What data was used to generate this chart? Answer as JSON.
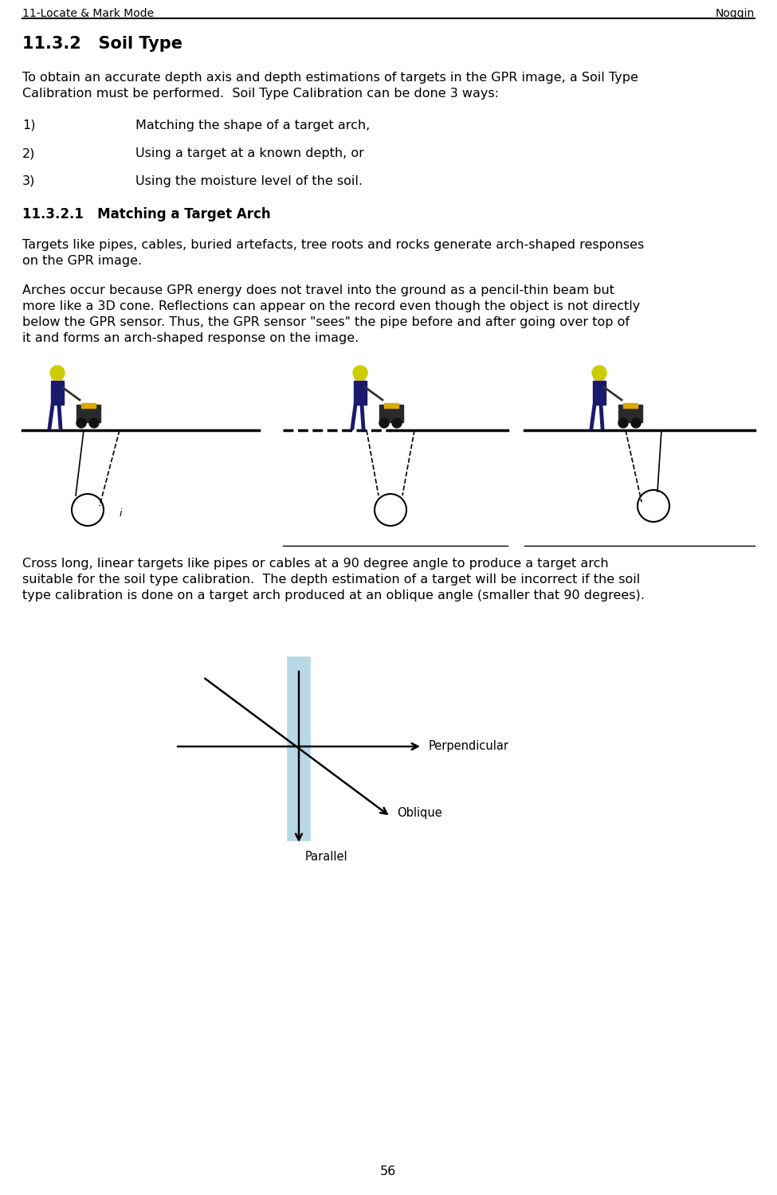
{
  "header_left": "11-Locate & Mark Mode",
  "header_right": "Noggin",
  "section_title": "11.3.2   Soil Type",
  "para1_line1": "To obtain an accurate depth axis and depth estimations of targets in the GPR image, a Soil Type",
  "para1_line2": "Calibration must be performed.  Soil Type Calibration can be done 3 ways:",
  "list_items": [
    {
      "num": "1)",
      "text": "Matching the shape of a target arch,"
    },
    {
      "num": "2)",
      "text": "Using a target at a known depth, or"
    },
    {
      "num": "3)",
      "text": "Using the moisture level of the soil."
    }
  ],
  "subsection_title": "11.3.2.1   Matching a Target Arch",
  "para2_line1": "Targets like pipes, cables, buried artefacts, tree roots and rocks generate arch-shaped responses",
  "para2_line2": "on the GPR image.",
  "para3_line1": "Arches occur because GPR energy does not travel into the ground as a pencil-thin beam but",
  "para3_line2": "more like a 3D cone. Reflections can appear on the record even though the object is not directly",
  "para3_line3": "below the GPR sensor. Thus, the GPR sensor \"sees\" the pipe before and after going over top of",
  "para3_line4": "it and forms an arch-shaped response on the image.",
  "para4_line1": "Cross long, linear targets like pipes or cables at a 90 degree angle to produce a target arch",
  "para4_line2": "suitable for the soil type calibration.  The depth estimation of a target will be incorrect if the soil",
  "para4_line3": "type calibration is done on a target arch produced at an oblique angle (smaller that 90 degrees).",
  "footer_text": "56",
  "bg_color": "#ffffff",
  "text_color": "#000000",
  "pipe_color": "#b8d8e8",
  "pipe_edge_color": "#000000",
  "label_perpendicular": "Perpendicular",
  "label_oblique": "Oblique",
  "label_parallel": "Parallel"
}
